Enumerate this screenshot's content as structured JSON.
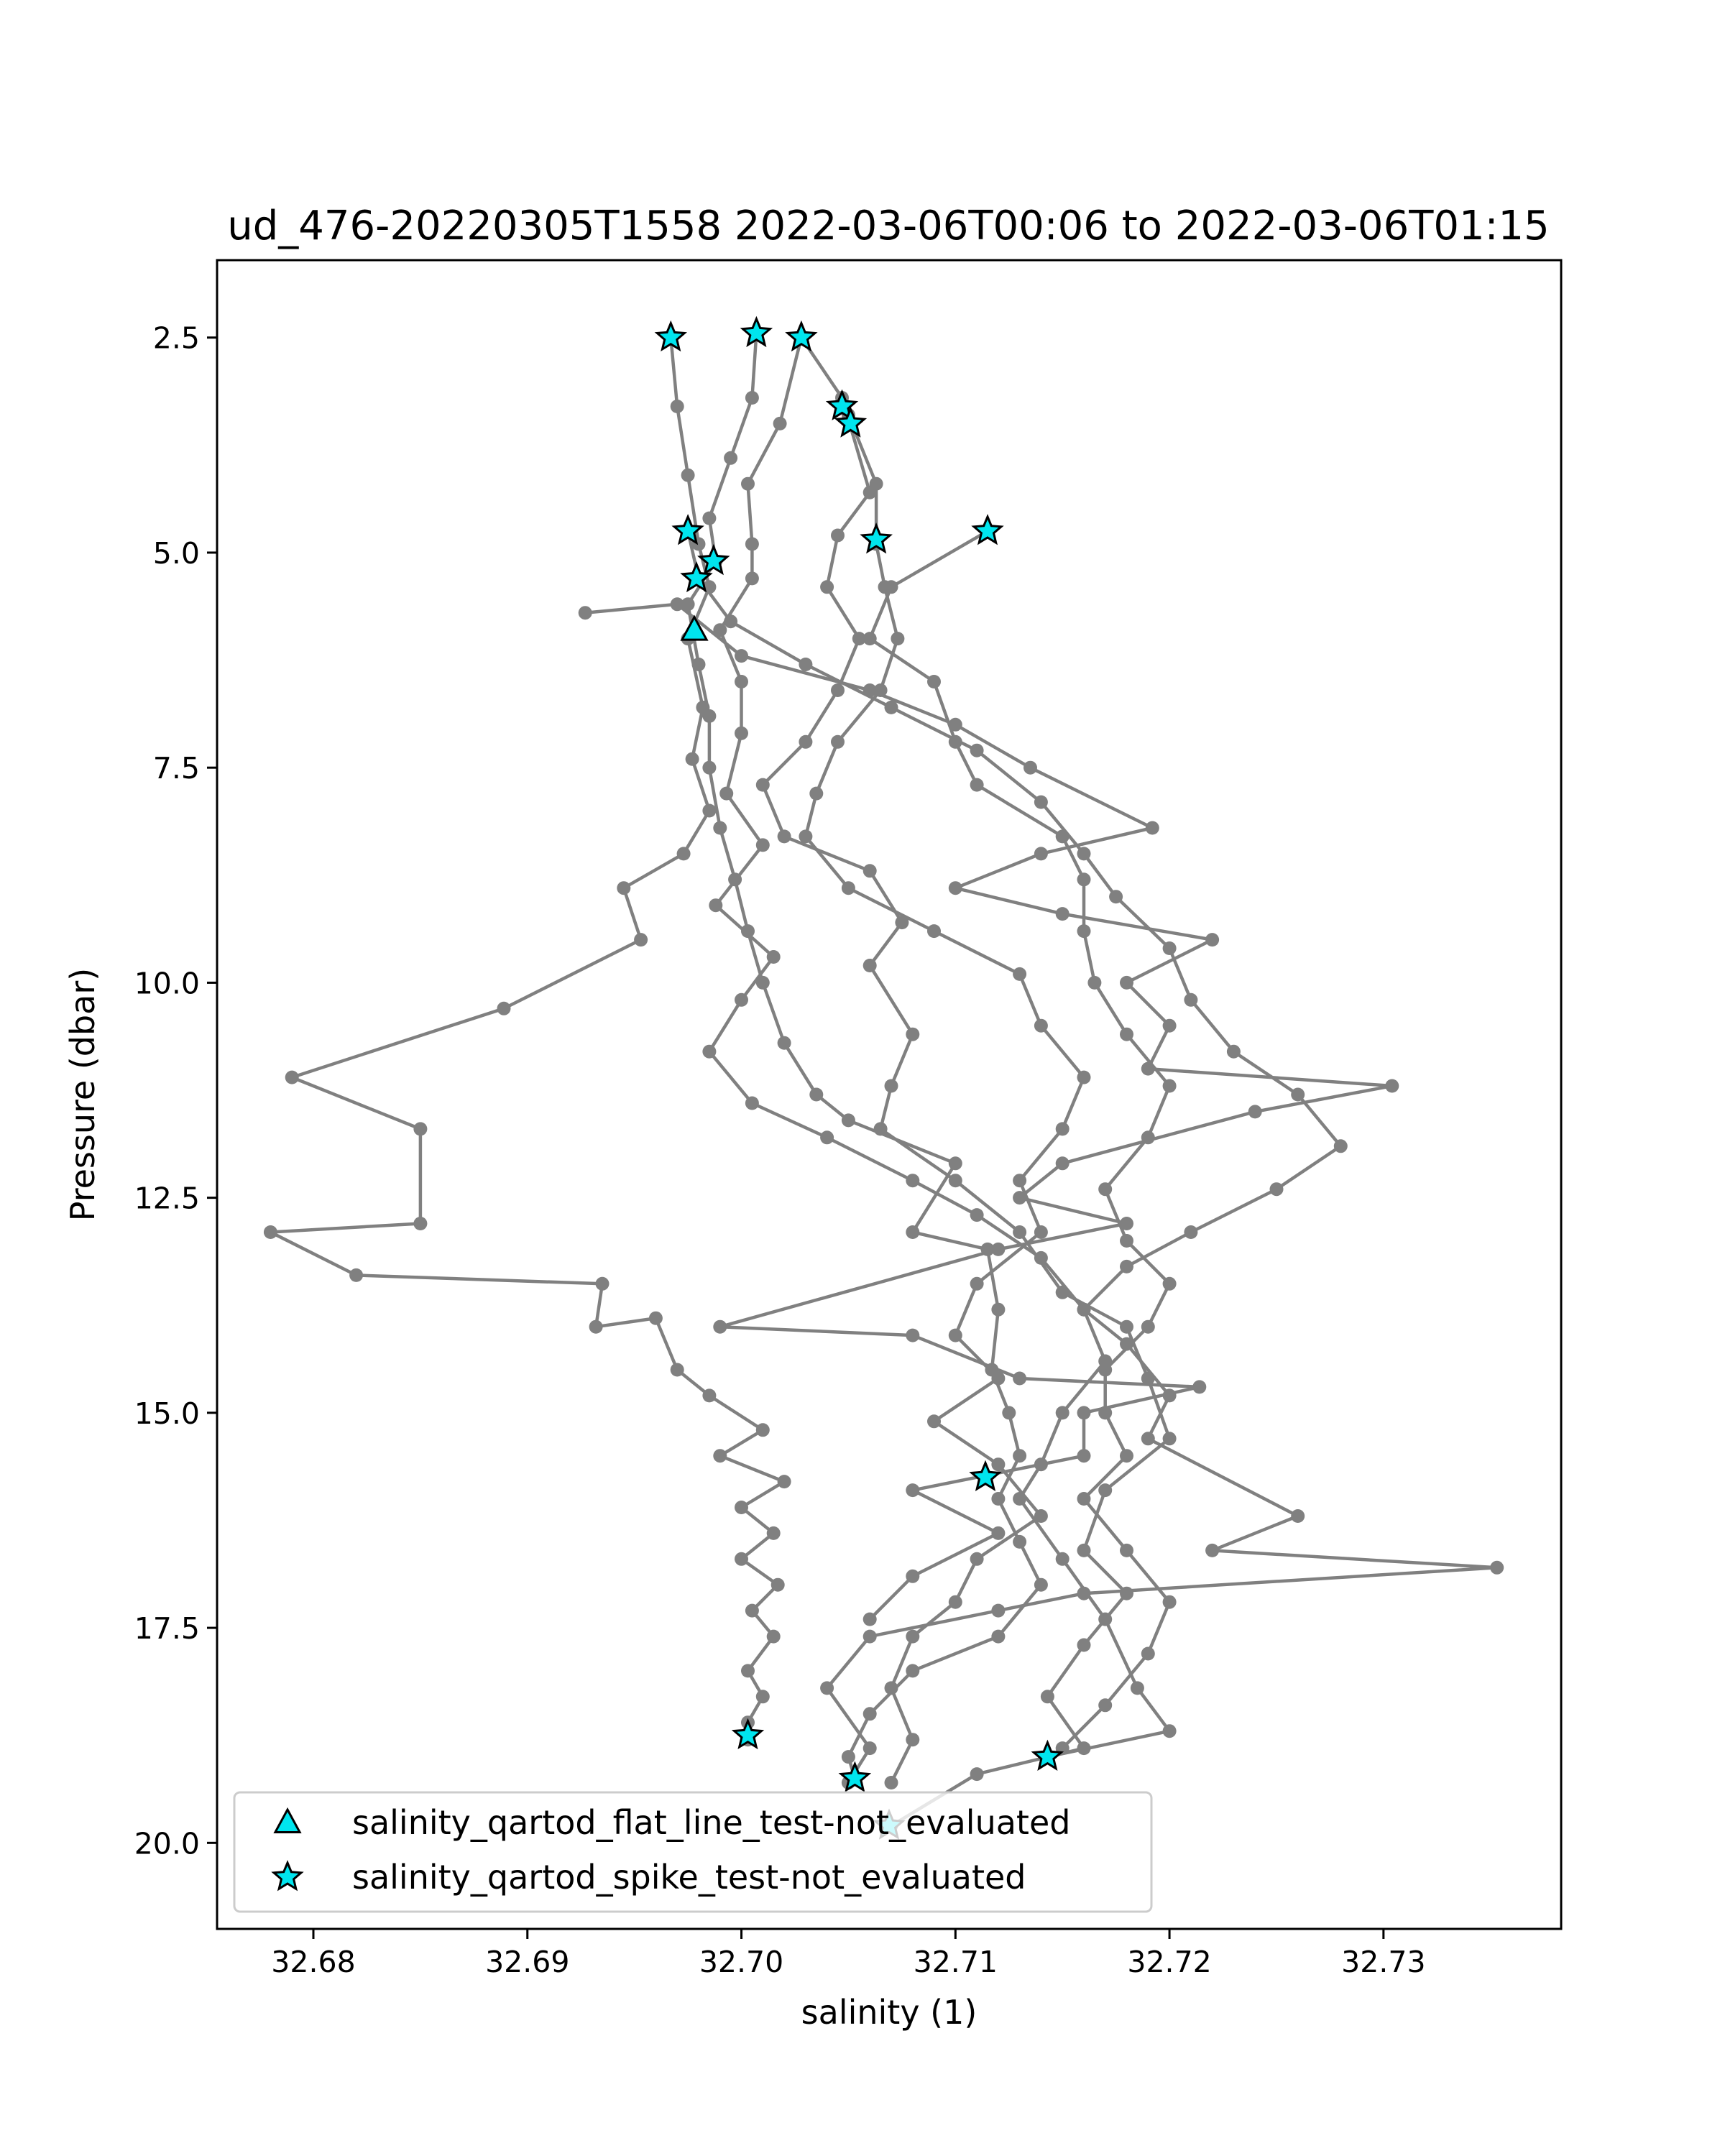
{
  "chart_data": {
    "type": "line",
    "title": "ud_476-20220305T1558 2022-03-06T00:06 to 2022-03-06T01:15",
    "xlabel": "salinity (1)",
    "ylabel": "Pressure (dbar)",
    "xlim": [
      32.6755,
      32.7383
    ],
    "ylim": [
      21.0,
      1.6
    ],
    "y_inverted": true,
    "grid": false,
    "xticks": [
      "32.68",
      "32.69",
      "32.70",
      "32.71",
      "32.72",
      "32.73"
    ],
    "xtick_values": [
      32.68,
      32.69,
      32.7,
      32.71,
      32.72,
      32.73
    ],
    "yticks": [
      "2.5",
      "5.0",
      "7.5",
      "10.0",
      "12.5",
      "15.0",
      "17.5",
      "20.0"
    ],
    "ytick_values": [
      2.5,
      5.0,
      7.5,
      10.0,
      12.5,
      15.0,
      17.5,
      20.0
    ],
    "line_color": "#808080",
    "marker_fill": "#00e5ee",
    "legend_position": "lower-left",
    "series": [
      {
        "points": [
          [
            32.6967,
            2.5
          ],
          [
            32.697,
            3.3
          ],
          [
            32.6975,
            4.1
          ],
          [
            32.698,
            4.9
          ],
          [
            32.6985,
            5.4
          ],
          [
            32.6975,
            6.0
          ],
          [
            32.6982,
            6.8
          ],
          [
            32.6977,
            7.4
          ],
          [
            32.6985,
            8.0
          ],
          [
            32.6973,
            8.5
          ],
          [
            32.6945,
            8.9
          ],
          [
            32.6953,
            9.5
          ],
          [
            32.6889,
            10.3
          ],
          [
            32.679,
            11.1
          ],
          [
            32.685,
            11.7
          ],
          [
            32.685,
            12.8
          ],
          [
            32.678,
            12.9
          ],
          [
            32.682,
            13.4
          ],
          [
            32.6935,
            13.5
          ],
          [
            32.6932,
            14.0
          ],
          [
            32.696,
            13.9
          ],
          [
            32.697,
            14.5
          ],
          [
            32.6985,
            14.8
          ],
          [
            32.701,
            15.2
          ],
          [
            32.699,
            15.5
          ],
          [
            32.702,
            15.8
          ],
          [
            32.7,
            16.1
          ],
          [
            32.7015,
            16.4
          ],
          [
            32.7,
            16.7
          ],
          [
            32.7017,
            17.0
          ],
          [
            32.7005,
            17.3
          ],
          [
            32.7015,
            17.6
          ],
          [
            32.7003,
            18.0
          ],
          [
            32.701,
            18.3
          ],
          [
            32.7003,
            18.6
          ],
          [
            32.7003,
            18.8
          ]
        ]
      },
      {
        "points": [
          [
            32.7007,
            2.45
          ],
          [
            32.7005,
            3.2
          ],
          [
            32.6995,
            3.9
          ],
          [
            32.6985,
            4.6
          ],
          [
            32.6988,
            5.1
          ],
          [
            32.6975,
            5.6
          ],
          [
            32.698,
            6.3
          ],
          [
            32.6985,
            6.9
          ],
          [
            32.6985,
            7.5
          ],
          [
            32.699,
            8.2
          ],
          [
            32.6997,
            8.8
          ],
          [
            32.7003,
            9.4
          ],
          [
            32.701,
            10.0
          ],
          [
            32.702,
            10.7
          ],
          [
            32.7035,
            11.3
          ],
          [
            32.705,
            11.6
          ],
          [
            32.71,
            12.1
          ],
          [
            32.708,
            12.9
          ],
          [
            32.7115,
            13.1
          ],
          [
            32.712,
            13.8
          ],
          [
            32.7117,
            14.5
          ],
          [
            32.7125,
            15.0
          ],
          [
            32.713,
            15.5
          ],
          [
            32.712,
            16.0
          ],
          [
            32.713,
            16.5
          ],
          [
            32.714,
            17.0
          ],
          [
            32.712,
            17.6
          ],
          [
            32.708,
            18.0
          ],
          [
            32.706,
            18.5
          ],
          [
            32.705,
            19.0
          ],
          [
            32.7053,
            19.25
          ]
        ]
      },
      {
        "points": [
          [
            32.7028,
            2.5
          ],
          [
            32.7018,
            3.5
          ],
          [
            32.7003,
            4.2
          ],
          [
            32.7005,
            4.9
          ],
          [
            32.7005,
            5.3
          ],
          [
            32.699,
            5.9
          ],
          [
            32.7,
            6.5
          ],
          [
            32.7,
            7.1
          ],
          [
            32.6993,
            7.8
          ],
          [
            32.701,
            8.4
          ],
          [
            32.6988,
            9.1
          ],
          [
            32.7015,
            9.7
          ],
          [
            32.7,
            10.2
          ],
          [
            32.6985,
            10.8
          ],
          [
            32.7005,
            11.4
          ],
          [
            32.704,
            11.8
          ],
          [
            32.708,
            12.3
          ],
          [
            32.711,
            12.7
          ],
          [
            32.714,
            13.2
          ],
          [
            32.716,
            13.8
          ],
          [
            32.717,
            14.4
          ],
          [
            32.715,
            15.0
          ],
          [
            32.714,
            15.6
          ],
          [
            32.713,
            16.0
          ],
          [
            32.715,
            16.7
          ],
          [
            32.717,
            17.4
          ],
          [
            32.7185,
            18.2
          ],
          [
            32.72,
            18.7
          ],
          [
            32.7143,
            19.0
          ]
        ]
      },
      {
        "points": [
          [
            32.7028,
            2.5
          ],
          [
            32.7047,
            3.2
          ],
          [
            32.706,
            4.3
          ],
          [
            32.7045,
            4.8
          ],
          [
            32.704,
            5.4
          ],
          [
            32.7055,
            6.0
          ],
          [
            32.7045,
            6.6
          ],
          [
            32.703,
            7.2
          ],
          [
            32.701,
            7.7
          ],
          [
            32.702,
            8.3
          ],
          [
            32.706,
            8.7
          ],
          [
            32.7075,
            9.3
          ],
          [
            32.706,
            9.8
          ],
          [
            32.708,
            10.6
          ],
          [
            32.707,
            11.2
          ],
          [
            32.7065,
            11.7
          ],
          [
            32.71,
            12.3
          ],
          [
            32.713,
            12.9
          ],
          [
            32.715,
            13.6
          ],
          [
            32.718,
            14.0
          ],
          [
            32.719,
            14.6
          ],
          [
            32.72,
            15.3
          ],
          [
            32.717,
            15.9
          ],
          [
            32.716,
            16.6
          ],
          [
            32.718,
            17.1
          ],
          [
            32.716,
            17.7
          ],
          [
            32.7143,
            18.3
          ],
          [
            32.716,
            18.9
          ],
          [
            32.711,
            19.2
          ],
          [
            32.707,
            19.8
          ]
        ]
      },
      {
        "points": [
          [
            32.705,
            3.4
          ],
          [
            32.7063,
            4.2
          ],
          [
            32.7063,
            4.9
          ],
          [
            32.7067,
            5.4
          ],
          [
            32.7073,
            6.0
          ],
          [
            32.7065,
            6.6
          ],
          [
            32.7045,
            7.2
          ],
          [
            32.7035,
            7.8
          ],
          [
            32.703,
            8.3
          ],
          [
            32.705,
            8.9
          ],
          [
            32.709,
            9.4
          ],
          [
            32.713,
            9.9
          ],
          [
            32.714,
            10.5
          ],
          [
            32.716,
            11.1
          ],
          [
            32.715,
            11.7
          ],
          [
            32.713,
            12.3
          ],
          [
            32.714,
            12.9
          ],
          [
            32.711,
            13.5
          ],
          [
            32.71,
            14.1
          ],
          [
            32.712,
            14.6
          ],
          [
            32.709,
            15.1
          ],
          [
            32.712,
            15.6
          ],
          [
            32.714,
            16.2
          ],
          [
            32.711,
            16.7
          ],
          [
            32.71,
            17.2
          ],
          [
            32.708,
            17.6
          ],
          [
            32.707,
            18.2
          ],
          [
            32.708,
            18.8
          ],
          [
            32.707,
            19.3
          ]
        ]
      },
      {
        "points": [
          [
            32.7115,
            4.75
          ],
          [
            32.707,
            5.4
          ],
          [
            32.706,
            6.0
          ],
          [
            32.709,
            6.5
          ],
          [
            32.71,
            7.2
          ],
          [
            32.711,
            7.7
          ],
          [
            32.715,
            8.3
          ],
          [
            32.716,
            8.8
          ],
          [
            32.716,
            9.4
          ],
          [
            32.7165,
            10.0
          ],
          [
            32.718,
            10.6
          ],
          [
            32.72,
            11.2
          ],
          [
            32.719,
            11.8
          ],
          [
            32.717,
            12.4
          ],
          [
            32.718,
            13.0
          ],
          [
            32.72,
            13.5
          ],
          [
            32.719,
            14.0
          ],
          [
            32.717,
            14.5
          ],
          [
            32.717,
            15.0
          ],
          [
            32.718,
            15.5
          ],
          [
            32.716,
            16.0
          ],
          [
            32.718,
            16.6
          ],
          [
            32.72,
            17.2
          ],
          [
            32.719,
            17.8
          ],
          [
            32.717,
            18.4
          ],
          [
            32.715,
            18.9
          ]
        ]
      },
      {
        "points": [
          [
            32.6975,
            4.75
          ],
          [
            32.698,
            5.3
          ],
          [
            32.6995,
            5.8
          ],
          [
            32.703,
            6.3
          ],
          [
            32.707,
            6.8
          ],
          [
            32.711,
            7.3
          ],
          [
            32.714,
            7.9
          ],
          [
            32.716,
            8.5
          ],
          [
            32.7175,
            9.0
          ],
          [
            32.72,
            9.6
          ],
          [
            32.721,
            10.2
          ],
          [
            32.723,
            10.8
          ],
          [
            32.726,
            11.3
          ],
          [
            32.728,
            11.9
          ],
          [
            32.725,
            12.4
          ],
          [
            32.721,
            12.9
          ],
          [
            32.718,
            13.3
          ],
          [
            32.716,
            13.8
          ],
          [
            32.718,
            14.2
          ],
          [
            32.72,
            14.8
          ],
          [
            32.719,
            15.3
          ],
          [
            32.726,
            16.2
          ],
          [
            32.722,
            16.6
          ],
          [
            32.7353,
            16.8
          ],
          [
            32.716,
            17.1
          ],
          [
            32.712,
            17.3
          ],
          [
            32.706,
            17.6
          ],
          [
            32.704,
            18.2
          ],
          [
            32.706,
            18.9
          ],
          [
            32.705,
            19.3
          ]
        ]
      },
      {
        "points": [
          [
            32.6927,
            5.7
          ],
          [
            32.697,
            5.6
          ],
          [
            32.7,
            6.2
          ],
          [
            32.706,
            6.6
          ],
          [
            32.71,
            7.0
          ],
          [
            32.7135,
            7.5
          ],
          [
            32.7192,
            8.2
          ],
          [
            32.714,
            8.5
          ],
          [
            32.71,
            8.9
          ],
          [
            32.715,
            9.2
          ],
          [
            32.722,
            9.5
          ],
          [
            32.718,
            10.0
          ],
          [
            32.72,
            10.5
          ],
          [
            32.719,
            11.0
          ],
          [
            32.7304,
            11.2
          ],
          [
            32.724,
            11.5
          ],
          [
            32.715,
            12.1
          ],
          [
            32.713,
            12.5
          ],
          [
            32.718,
            12.8
          ],
          [
            32.712,
            13.1
          ],
          [
            32.699,
            14.0
          ],
          [
            32.708,
            14.1
          ],
          [
            32.713,
            14.6
          ],
          [
            32.7214,
            14.7
          ],
          [
            32.716,
            15.0
          ],
          [
            32.716,
            15.5
          ],
          [
            32.708,
            15.9
          ],
          [
            32.712,
            16.4
          ],
          [
            32.708,
            16.9
          ],
          [
            32.706,
            17.4
          ]
        ]
      }
    ],
    "flat_line_markers": [
      [
        32.6978,
        5.9
      ]
    ],
    "spike_markers": [
      [
        32.6967,
        2.5
      ],
      [
        32.7007,
        2.45
      ],
      [
        32.7028,
        2.5
      ],
      [
        32.7047,
        3.3
      ],
      [
        32.7051,
        3.5
      ],
      [
        32.6975,
        4.75
      ],
      [
        32.6987,
        5.1
      ],
      [
        32.6979,
        5.3
      ],
      [
        32.7063,
        4.85
      ],
      [
        32.7115,
        4.75
      ],
      [
        32.7114,
        15.75
      ],
      [
        32.7003,
        18.75
      ],
      [
        32.7143,
        19.0
      ],
      [
        32.7053,
        19.25
      ],
      [
        32.7069,
        19.8
      ]
    ],
    "legend": [
      {
        "marker": "triangle",
        "label": "salinity_qartod_flat_line_test-not_evaluated"
      },
      {
        "marker": "star",
        "label": "salinity_qartod_spike_test-not_evaluated"
      }
    ]
  }
}
